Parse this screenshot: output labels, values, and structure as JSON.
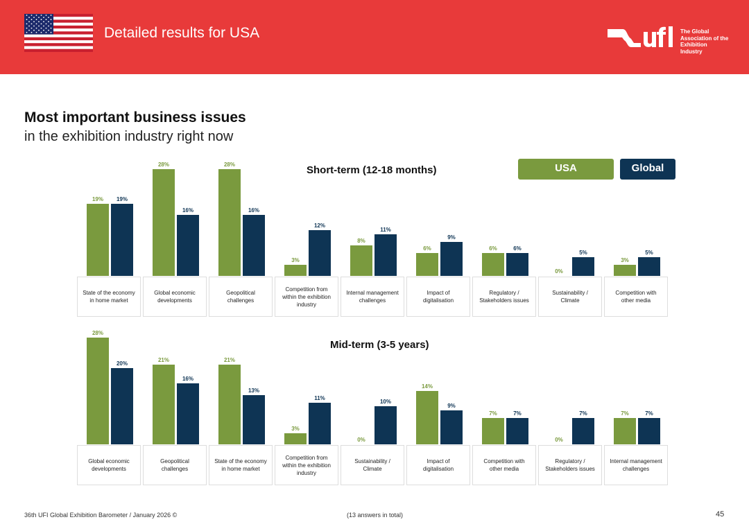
{
  "header": {
    "title": "Detailed results for USA",
    "logo_text": "ufi",
    "logo_tagline": "The Global Association of the Exhibition Industry"
  },
  "page": {
    "title": "Most important business issues",
    "subtitle": "in the exhibition industry right now"
  },
  "legend": {
    "usa": "USA",
    "global": "Global"
  },
  "colors": {
    "header": "#e83a3a",
    "usa": "#7a9a3e",
    "global": "#0e3454"
  },
  "chart_data": [
    {
      "type": "bar",
      "title": "Short-term (12-18 months)",
      "series_names": [
        "USA",
        "Global"
      ],
      "unit": "%",
      "categories": [
        "State of the economy in home market",
        "Global economic developments",
        "Geopolitical challenges",
        "Competition from within the exhibition industry",
        "Internal management challenges",
        "Impact of digitalisation",
        "Regulatory / Stakeholders issues",
        "Sustainability / Climate",
        "Competition with other media"
      ],
      "series": [
        {
          "name": "USA",
          "values": [
            19,
            28,
            28,
            3,
            8,
            6,
            6,
            0,
            3
          ]
        },
        {
          "name": "Global",
          "values": [
            19,
            16,
            16,
            12,
            11,
            9,
            6,
            5,
            5
          ]
        }
      ]
    },
    {
      "type": "bar",
      "title": "Mid-term (3-5 years)",
      "series_names": [
        "USA",
        "Global"
      ],
      "unit": "%",
      "categories": [
        "Global economic developments",
        "Geopolitical challenges",
        "State of the economy in home market",
        "Competition from within the exhibition industry",
        "Sustainability / Climate",
        "Impact of digitalisation",
        "Competition with other media",
        "Regulatory / Stakeholders issues",
        "Internal management challenges"
      ],
      "series": [
        {
          "name": "USA",
          "values": [
            28,
            21,
            21,
            3,
            0,
            14,
            7,
            0,
            7
          ]
        },
        {
          "name": "Global",
          "values": [
            20,
            16,
            13,
            11,
            10,
            9,
            7,
            7,
            7
          ]
        }
      ]
    }
  ],
  "footer": {
    "source": "36th UFI Global Exhibition Barometer / January 2026 ©",
    "note": "(13 answers in total)",
    "page_number": "45"
  }
}
